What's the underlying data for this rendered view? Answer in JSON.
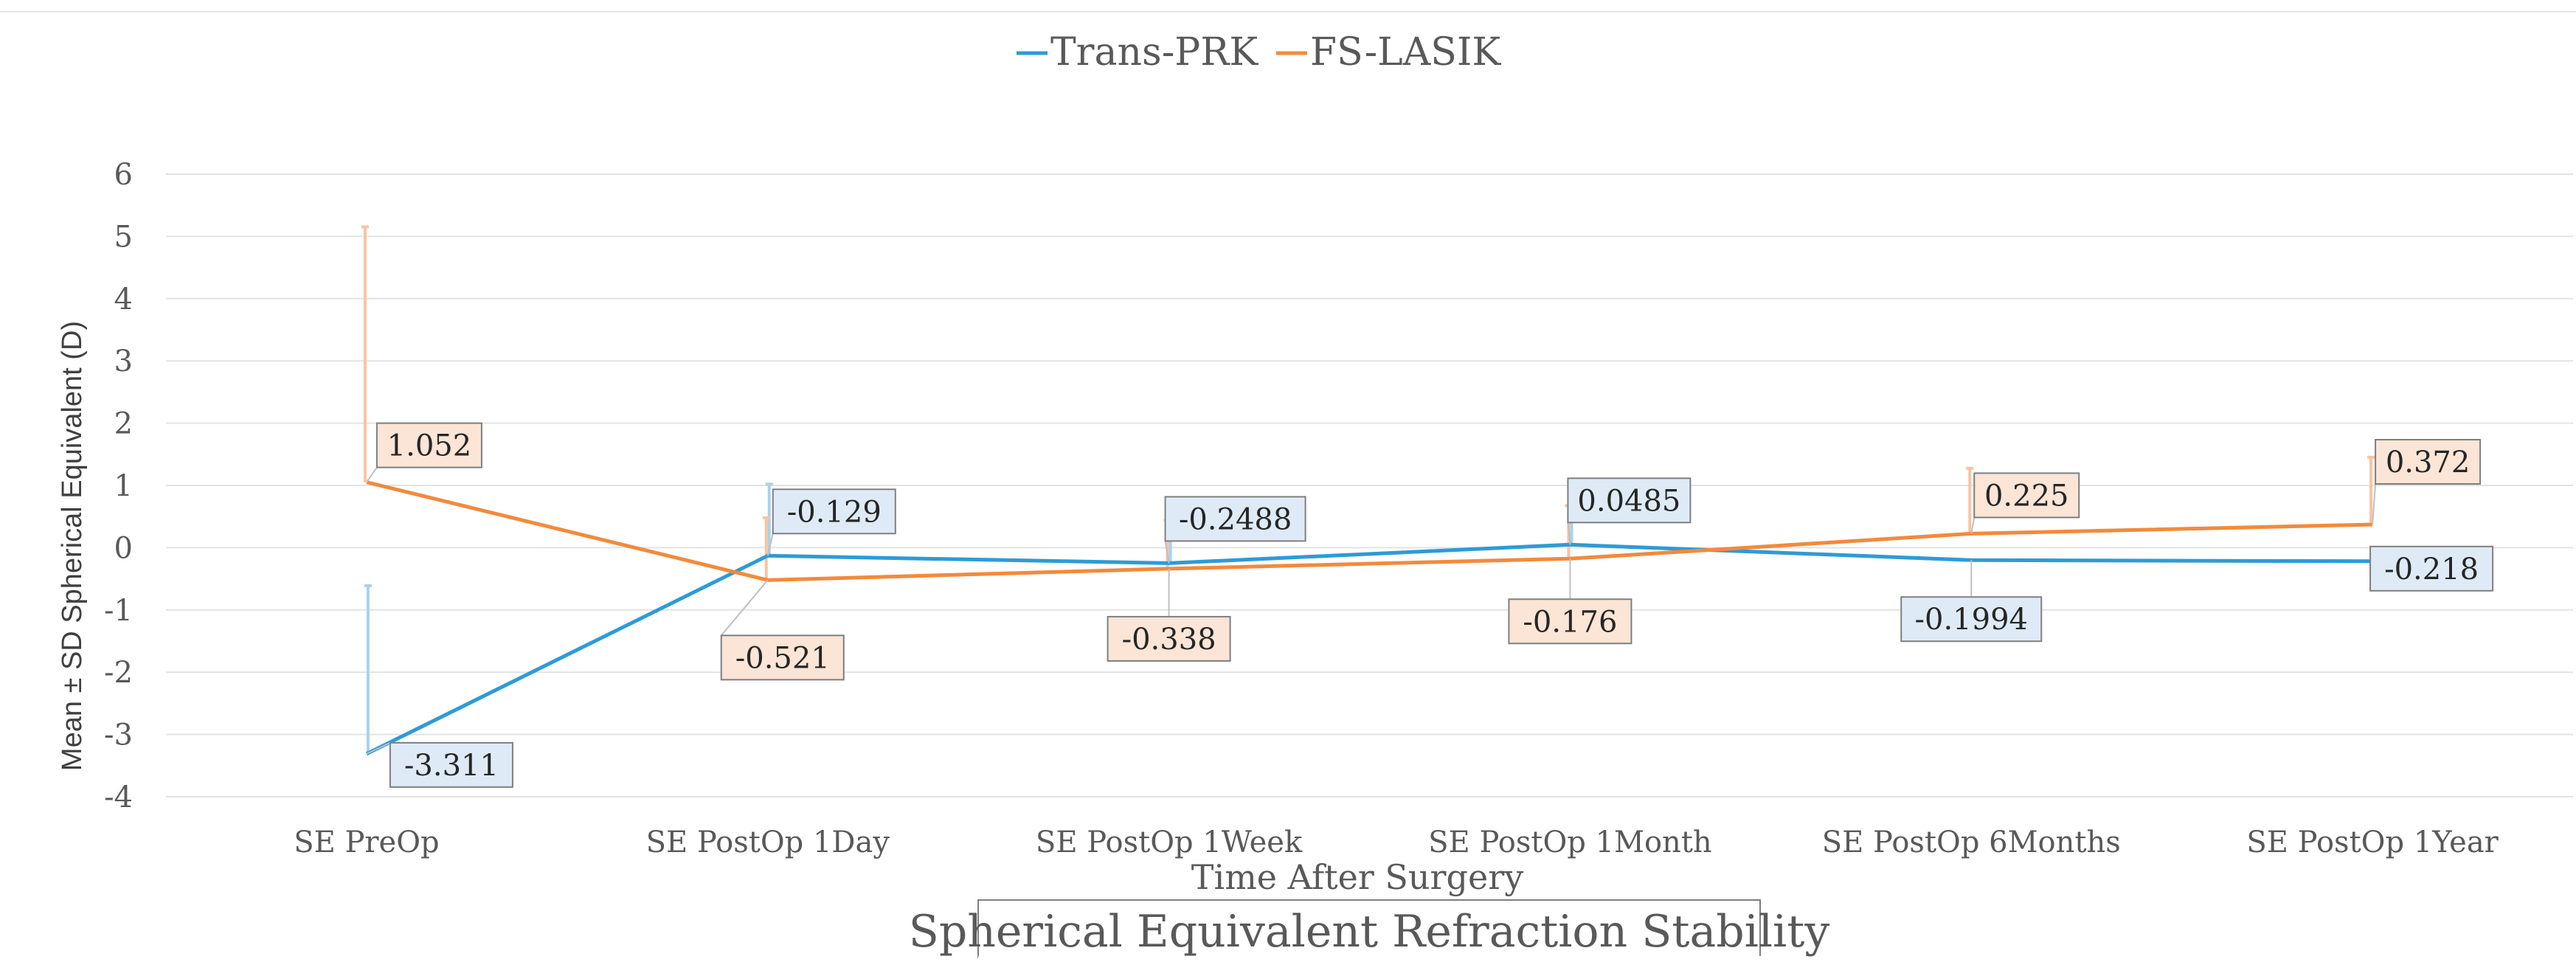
{
  "chart_data": {
    "type": "line",
    "title": "Spherical Equivalent Refraction Stability",
    "xlabel": "Time After Surgery",
    "ylabel": "Mean ± SD Spherical Equivalent (D)",
    "ylim": [
      -4,
      6
    ],
    "yticks": [
      6,
      5,
      4,
      3,
      2,
      1,
      0,
      -1,
      -2,
      -3,
      -4
    ],
    "ytick_labels": [
      "6",
      "5",
      "4",
      "3",
      "2",
      "1",
      "0",
      "-1",
      "-2",
      "-3",
      "-4"
    ],
    "grid": true,
    "legend_position": "top-center",
    "categories": [
      "SE PreOp",
      "SE PostOp 1Day",
      "SE PostOp 1Week",
      "SE PostOp 1Month",
      "SE PostOp 6Months",
      "SE PostOp 1Year"
    ],
    "series": [
      {
        "name": "Trans-PRK",
        "color": "#2E9BD6",
        "label_fill": "#DEEBF7",
        "errbar_color": "#A8D2EE",
        "values": [
          -3.311,
          -0.129,
          -0.2488,
          0.0485,
          -0.1994,
          -0.218
        ],
        "value_labels": [
          "-3.311",
          "-0.129",
          "-0.2488",
          "0.0485",
          "-0.1994",
          "-0.218"
        ],
        "error_plus": [
          2.7,
          1.15,
          0.7,
          0.75,
          0.0,
          0.0
        ]
      },
      {
        "name": "FS-LASIK",
        "color": "#F28A3C",
        "label_fill": "#FBE5D6",
        "errbar_color": "#F9C3A1",
        "values": [
          1.052,
          -0.521,
          -0.338,
          -0.176,
          0.225,
          0.372
        ],
        "value_labels": [
          "1.052",
          "-0.521",
          "-0.338",
          "-0.176",
          "0.225",
          "0.372"
        ],
        "error_plus": [
          4.1,
          1.0,
          0.78,
          0.85,
          1.05,
          1.08
        ]
      }
    ]
  }
}
